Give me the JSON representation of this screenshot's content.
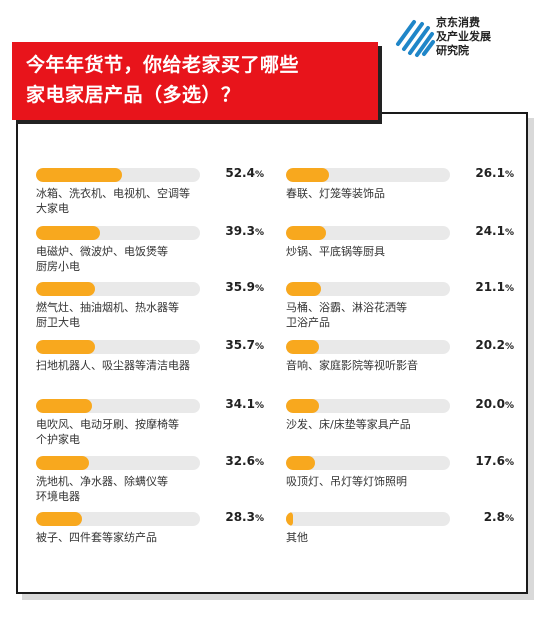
{
  "brand": {
    "lines": [
      "京东消费",
      "及产业发展",
      "研究院"
    ]
  },
  "title": {
    "line1": "今年年货节，你给老家买了哪些",
    "line2": "家电家居产品（多选）？"
  },
  "chart_data": {
    "type": "bar",
    "unit": "%",
    "xlim": [
      0,
      100
    ],
    "left": [
      {
        "label_lines": [
          "冰箱、洗衣机、电视机、空调等",
          "大家电"
        ],
        "value": 52.4
      },
      {
        "label_lines": [
          "电磁炉、微波炉、电饭煲等",
          "厨房小电"
        ],
        "value": 39.3
      },
      {
        "label_lines": [
          "燃气灶、抽油烟机、热水器等",
          "厨卫大电"
        ],
        "value": 35.9
      },
      {
        "label_lines": [
          "扫地机器人、吸尘器等清洁电器"
        ],
        "value": 35.7
      },
      {
        "label_lines": [
          "电吹风、电动牙刷、按摩椅等",
          "个护家电"
        ],
        "value": 34.1
      },
      {
        "label_lines": [
          "洗地机、净水器、除螨仪等",
          "环境电器"
        ],
        "value": 32.6
      },
      {
        "label_lines": [
          "被子、四件套等家纺产品"
        ],
        "value": 28.3
      }
    ],
    "right": [
      {
        "label_lines": [
          "春联、灯笼等装饰品"
        ],
        "value": 26.1
      },
      {
        "label_lines": [
          "炒锅、平底锅等厨具"
        ],
        "value": 24.1
      },
      {
        "label_lines": [
          "马桶、浴霸、淋浴花洒等",
          "卫浴产品"
        ],
        "value": 21.1
      },
      {
        "label_lines": [
          "音响、家庭影院等视听影音"
        ],
        "value": 20.2
      },
      {
        "label_lines": [
          "沙发、床/床垫等家具产品"
        ],
        "value": 20.0
      },
      {
        "label_lines": [
          "吸顶灯、吊灯等灯饰照明"
        ],
        "value": 17.6
      },
      {
        "label_lines": [
          "其他"
        ],
        "value": 2.8
      }
    ]
  },
  "colors": {
    "accent": "#e8141b",
    "bar": "#f8a81e",
    "track": "#e9e9e9"
  }
}
